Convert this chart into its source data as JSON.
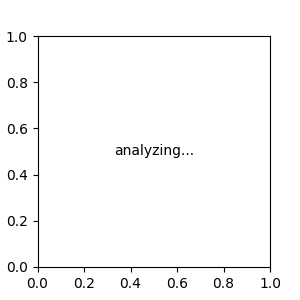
{
  "bg": "#e8e8e8",
  "bond_color": "#1a1a1a",
  "N_color": "#0000cc",
  "O_color": "#dd0000",
  "H_color": "#008080",
  "lw": 1.5,
  "lw2": 2.5,
  "fs": 9.5,
  "fs_small": 8.5
}
